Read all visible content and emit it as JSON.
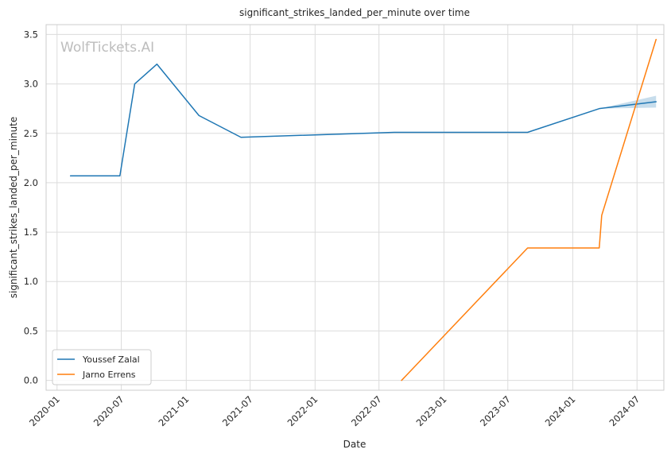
{
  "chart_data": {
    "type": "line",
    "title": "significant_strikes_landed_per_minute over time",
    "xlabel": "Date",
    "ylabel": "significant_strikes_landed_per_minute",
    "watermark": "WolfTickets.AI",
    "xlim": [
      "2019-12-01",
      "2024-09-15"
    ],
    "ylim": [
      -0.1,
      3.6
    ],
    "x_ticks": [
      "2020-01",
      "2020-07",
      "2021-01",
      "2021-07",
      "2022-01",
      "2022-07",
      "2023-01",
      "2023-07",
      "2024-01",
      "2024-07"
    ],
    "y_ticks": [
      "0.0",
      "0.5",
      "1.0",
      "1.5",
      "2.0",
      "2.5",
      "3.0",
      "3.5"
    ],
    "grid": true,
    "legend_position": "lower-left",
    "series": [
      {
        "name": "Youssef Zalal",
        "color": "#1f77b4",
        "points": [
          {
            "x": "2020-02-08",
            "y": 2.07
          },
          {
            "x": "2020-06-27",
            "y": 2.07
          },
          {
            "x": "2020-08-08",
            "y": 3.0
          },
          {
            "x": "2020-10-10",
            "y": 3.2
          },
          {
            "x": "2021-02-06",
            "y": 2.68
          },
          {
            "x": "2021-06-05",
            "y": 2.46
          },
          {
            "x": "2022-08-13",
            "y": 2.51
          },
          {
            "x": "2023-08-26",
            "y": 2.51
          },
          {
            "x": "2024-03-16",
            "y": 2.75
          },
          {
            "x": "2024-08-24",
            "y": 2.82
          }
        ],
        "confidence_band": [
          {
            "x": "2024-03-16",
            "low": 2.75,
            "high": 2.75
          },
          {
            "x": "2024-08-24",
            "low": 2.76,
            "high": 2.88
          }
        ]
      },
      {
        "name": "Jarno Errens",
        "color": "#ff7f0e",
        "points": [
          {
            "x": "2022-09-03",
            "y": 0.0
          },
          {
            "x": "2023-08-26",
            "y": 1.34
          },
          {
            "x": "2024-03-16",
            "y": 1.34
          },
          {
            "x": "2024-03-23",
            "y": 1.67
          },
          {
            "x": "2024-08-24",
            "y": 3.45
          }
        ]
      }
    ]
  }
}
